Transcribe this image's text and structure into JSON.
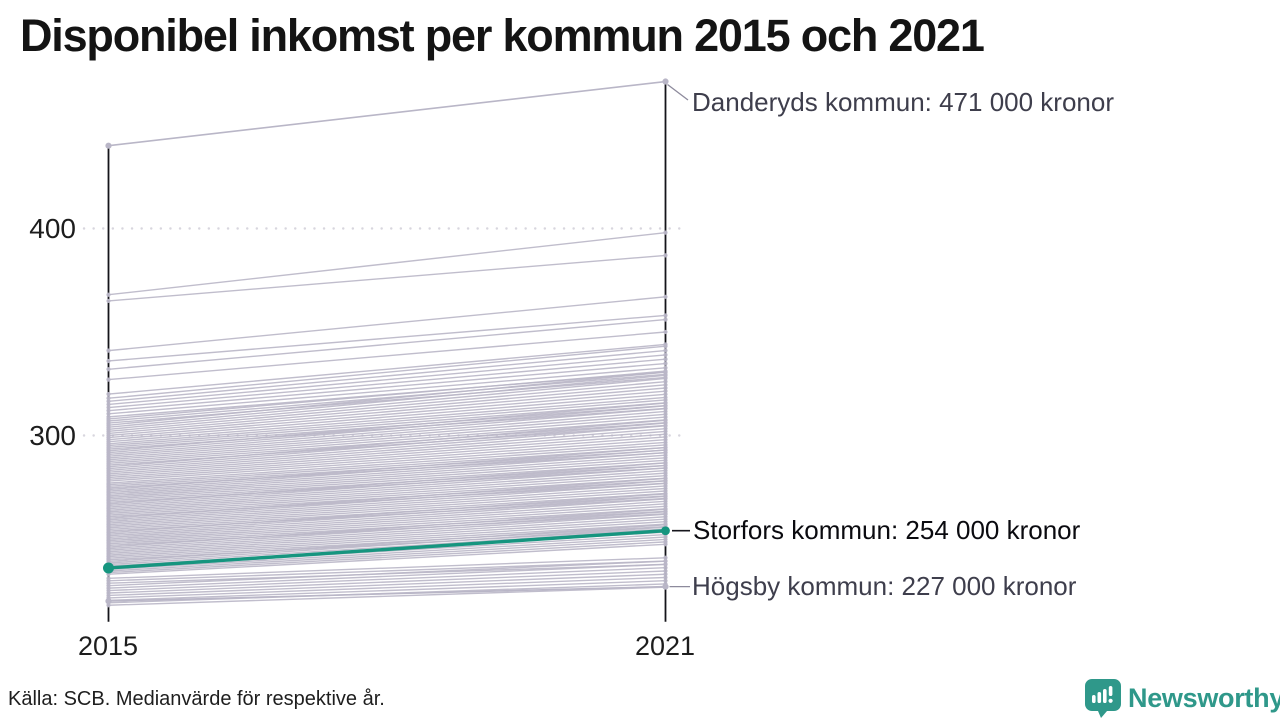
{
  "title": "Disponibel inkomst per kommun 2015 och 2021",
  "chart_data": {
    "type": "line",
    "subtype": "slope-chart",
    "x": [
      2015,
      2021
    ],
    "x_labels": [
      "2015",
      "2021"
    ],
    "y_ticks": [
      300,
      400
    ],
    "y_tick_labels": [
      "300",
      "400"
    ],
    "ylim": [
      210,
      475
    ],
    "unit": "tusen kronor",
    "grid": true,
    "labeled_series": [
      {
        "name": "Danderyds kommun",
        "values": [
          440,
          471
        ],
        "label": "Danderyds kommun: 471 000 kronor",
        "highlight": false
      },
      {
        "name": "Storfors kommun",
        "values": [
          236,
          254
        ],
        "label": "Storfors kommun: 254 000 kronor",
        "highlight": true
      },
      {
        "name": "Högsby kommun",
        "values": [
          220,
          227
        ],
        "label": "Högsby kommun: 227 000 kronor",
        "highlight": false
      }
    ],
    "background_outliers": [
      [
        320,
        344
      ],
      [
        327,
        350
      ],
      [
        332,
        356
      ],
      [
        336,
        358
      ],
      [
        341,
        367
      ],
      [
        365,
        387
      ],
      [
        368,
        398
      ]
    ],
    "background_bands": [
      {
        "from": 218,
        "to": 231,
        "count": 12,
        "growth": 1.046
      },
      {
        "from": 233,
        "to": 277,
        "count": 58,
        "growth": 1.068
      },
      {
        "from": 278,
        "to": 296,
        "count": 22,
        "growth": 1.073
      },
      {
        "from": 297,
        "to": 308,
        "count": 12,
        "growth": 1.078
      },
      {
        "from": 309,
        "to": 318,
        "count": 7,
        "growth": 1.076
      }
    ],
    "axis": {
      "left_top_value": 440,
      "right_top_value": 471,
      "bottom_value": 210
    },
    "colors": {
      "background_line": "#b9b6c7",
      "highlight_line": "#16957f",
      "axis": "#15151a",
      "gridline": "#d8d6de",
      "connector_gray": "#8d8a9c",
      "connector_dark": "#16161c"
    }
  },
  "footer": {
    "source": "Källa: SCB. Medianvärde för respektive år."
  },
  "logo": {
    "text": "Newsworthy",
    "color": "#2f988a"
  }
}
